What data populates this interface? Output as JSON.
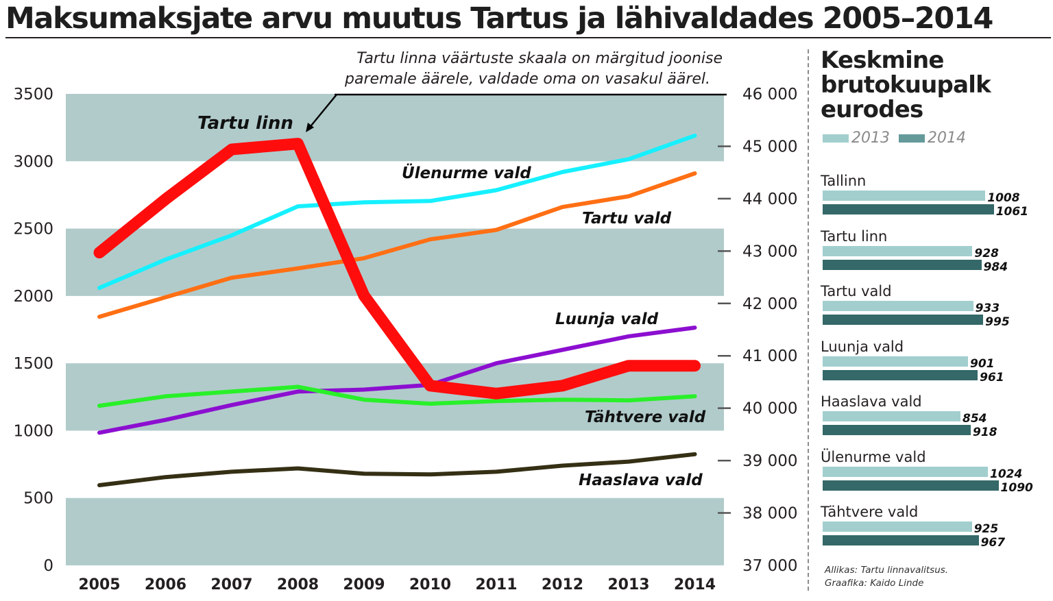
{
  "title": "Maksumaksjate arvu muutus Tartus ja lähivaldades 2005–2014",
  "annotation": {
    "line1": "Tartu linna väärtuste skaala on märgitud joonise",
    "line2": "paremale äärele, valdade oma on vasakul äärel."
  },
  "colors": {
    "band": "#b1cbcb",
    "tartu_linn": "#ff0d0d",
    "ulenurme": "#16f0ff",
    "tartu_vald": "#ff6f14",
    "luunja": "#8c0fd0",
    "tahtvere": "#29f029",
    "haaslava": "#352f14",
    "bar_2013": "#a2cece",
    "bar_2014": "#356868"
  },
  "chart_data": [
    {
      "type": "line",
      "x": [
        "2005",
        "2006",
        "2007",
        "2008",
        "2009",
        "2010",
        "2011",
        "2012",
        "2013",
        "2014"
      ],
      "left_axis": {
        "ticks": [
          "0",
          "500",
          "1000",
          "1500",
          "2000",
          "2500",
          "3000",
          "3500"
        ],
        "ylim": [
          0,
          3500
        ]
      },
      "right_axis": {
        "ticks": [
          "37 000",
          "38 000",
          "39 000",
          "40 000",
          "41 000",
          "42 000",
          "43 000",
          "44 000",
          "45 000",
          "46 000"
        ],
        "ylim": [
          37000,
          46000
        ]
      },
      "series": [
        {
          "name": "Ülenurme vald",
          "key": "ulenurme",
          "axis": "left",
          "values": [
            2060,
            2270,
            2450,
            2665,
            2695,
            2705,
            2785,
            2920,
            3015,
            3190
          ]
        },
        {
          "name": "Tartu vald",
          "key": "tartu_vald",
          "axis": "left",
          "values": [
            1845,
            1990,
            2135,
            2205,
            2280,
            2420,
            2490,
            2660,
            2740,
            2910
          ]
        },
        {
          "name": "Luunja vald",
          "key": "luunja",
          "axis": "left",
          "values": [
            985,
            1080,
            1190,
            1290,
            1305,
            1340,
            1500,
            1600,
            1700,
            1765
          ]
        },
        {
          "name": "Tähtvere vald",
          "key": "tahtvere",
          "axis": "left",
          "values": [
            1185,
            1255,
            1290,
            1325,
            1230,
            1200,
            1220,
            1230,
            1225,
            1255
          ]
        },
        {
          "name": "Haaslava vald",
          "key": "haaslava",
          "axis": "left",
          "values": [
            595,
            655,
            695,
            720,
            680,
            675,
            695,
            740,
            770,
            825
          ]
        },
        {
          "name": "Tartu linn",
          "key": "tartu_linn",
          "axis": "right",
          "values": [
            42970,
            43990,
            44940,
            45050,
            42150,
            40430,
            40280,
            40430,
            40810,
            40810
          ]
        }
      ]
    },
    {
      "type": "bar",
      "title": "Keskmine brutokuupalk eurodes",
      "legend": [
        "2013",
        "2014"
      ],
      "categories": [
        "Tallinn",
        "Tartu linn",
        "Tartu vald",
        "Luunja vald",
        "Haaslava vald",
        "Ülenurme vald",
        "Tähtvere vald"
      ],
      "series": [
        {
          "name": "2013",
          "values": [
            1008,
            928,
            933,
            901,
            854,
            1024,
            925
          ]
        },
        {
          "name": "2014",
          "values": [
            1061,
            984,
            995,
            961,
            918,
            1090,
            967
          ]
        }
      ]
    }
  ],
  "side_panel": {
    "title_lines": [
      "Keskmine",
      "brutokuupalk",
      "eurodes"
    ],
    "legend_2013": "2013",
    "legend_2014": "2014"
  },
  "source": {
    "line1": "Allikas: Tartu linnavalitsus.",
    "line2": "Graafika: Kaido Linde"
  }
}
